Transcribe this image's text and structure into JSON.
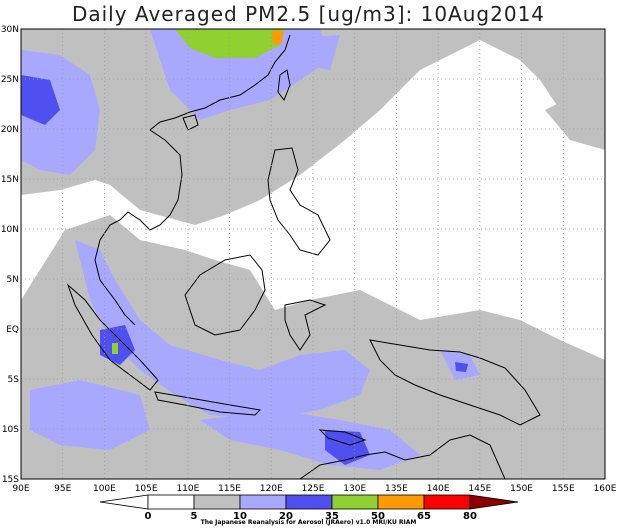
{
  "title": "Daily Averaged PM2.5 [ug/m3]: 10Aug2014",
  "map": {
    "lon_labels": [
      "90E",
      "95E",
      "100E",
      "105E",
      "110E",
      "115E",
      "120E",
      "125E",
      "130E",
      "135E",
      "140E",
      "145E",
      "150E",
      "155E",
      "160E"
    ],
    "lat_labels": [
      "30N",
      "25N",
      "20N",
      "15N",
      "10N",
      "5N",
      "EQ",
      "5S",
      "10S",
      "15S"
    ],
    "lon_range": [
      90,
      160
    ],
    "lat_range": [
      -15,
      30
    ],
    "grid": "dotted"
  },
  "colorbar": {
    "levels": [
      "0",
      "5",
      "10",
      "20",
      "35",
      "50",
      "65",
      "80"
    ],
    "colors": {
      "white": "#ffffff",
      "gray": "#c0c0c0",
      "lavender": "#a8a8ff",
      "blue": "#5050f0",
      "green": "#90d030",
      "orange": "#ff9a00",
      "red": "#ff0000",
      "darkred": "#8c0000"
    }
  },
  "credit": "The Japanese Reanalysis for Aerosol (JRAero) v1.0 MRI/KU RIAM"
}
